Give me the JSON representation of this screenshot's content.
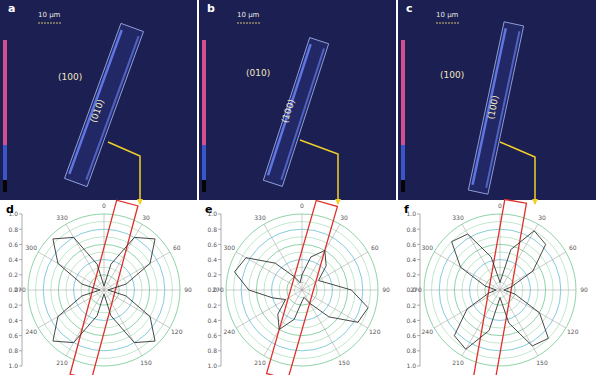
{
  "panels": [
    {
      "letter": "a",
      "scale_bar": "10 μm",
      "labels": [
        "(100)",
        "(010)"
      ]
    },
    {
      "letter": "b",
      "scale_bar": "10 μm",
      "labels": [
        "(010)",
        "(100)"
      ]
    },
    {
      "letter": "c",
      "scale_bar": "10 μm",
      "labels": [
        "(100)",
        "(100)"
      ]
    }
  ],
  "chart_data": [
    {
      "type": "polar",
      "title": "d",
      "x": [
        0,
        15,
        30,
        45,
        60,
        75,
        90,
        105,
        120,
        135,
        150,
        165,
        180,
        195,
        210,
        225,
        240,
        255,
        270,
        285,
        300,
        315,
        330,
        345
      ],
      "values": [
        0.05,
        0.35,
        0.8,
        0.95,
        0.7,
        0.3,
        0.05,
        0.3,
        0.7,
        0.95,
        0.8,
        0.35,
        0.05,
        0.35,
        0.8,
        0.95,
        0.7,
        0.3,
        0.05,
        0.3,
        0.7,
        0.95,
        0.8,
        0.35
      ],
      "xticks": [
        0,
        30,
        60,
        90,
        120,
        150,
        210,
        240,
        270,
        300,
        330
      ],
      "ylim": [
        0,
        1
      ],
      "yticks": [
        {
          "value": 0,
          "label": "0.0"
        },
        {
          "value": 0.2,
          "label": "0.2"
        },
        {
          "value": 0.4,
          "label": "0.4"
        },
        {
          "value": 0.6,
          "label": "0.6"
        },
        {
          "value": 0.8,
          "label": "0.8"
        },
        {
          "value": 1,
          "label": "1.0"
        }
      ],
      "color": "#333333",
      "grid": true
    },
    {
      "type": "polar",
      "title": "e",
      "x": [
        0,
        15,
        30,
        45,
        60,
        75,
        90,
        105,
        120,
        135,
        150,
        165,
        180,
        195,
        210,
        225,
        240,
        255,
        270,
        285,
        300,
        315,
        330,
        345
      ],
      "values": [
        0.2,
        0.45,
        0.6,
        0.45,
        0.25,
        0.35,
        0.65,
        0.9,
        0.85,
        0.5,
        0.2,
        0.1,
        0.15,
        0.4,
        0.6,
        0.45,
        0.25,
        0.4,
        0.7,
        0.92,
        0.85,
        0.5,
        0.2,
        0.1
      ],
      "xticks": [
        0,
        30,
        60,
        90,
        120,
        150,
        210,
        240,
        270,
        300,
        330
      ],
      "ylim": [
        0,
        1
      ],
      "yticks": [
        {
          "value": 0,
          "label": "0.0"
        },
        {
          "value": 0.2,
          "label": "0.2"
        },
        {
          "value": 0.4,
          "label": "0.4"
        },
        {
          "value": 0.6,
          "label": "0.6"
        },
        {
          "value": 0.8,
          "label": "0.8"
        },
        {
          "value": 1,
          "label": "1.0"
        }
      ],
      "color": "#333333",
      "grid": true
    },
    {
      "type": "polar",
      "title": "f",
      "x": [
        0,
        15,
        30,
        45,
        60,
        75,
        90,
        105,
        120,
        135,
        150,
        165,
        180,
        195,
        210,
        225,
        240,
        255,
        270,
        285,
        300,
        315,
        330,
        345
      ],
      "values": [
        0.1,
        0.55,
        0.9,
        0.85,
        0.5,
        0.15,
        0.05,
        0.2,
        0.6,
        0.9,
        0.85,
        0.45,
        0.1,
        0.55,
        0.9,
        0.85,
        0.5,
        0.15,
        0.05,
        0.2,
        0.6,
        0.9,
        0.85,
        0.45
      ],
      "xticks": [
        0,
        30,
        60,
        90,
        120,
        150,
        210,
        240,
        270,
        300,
        330
      ],
      "ylim": [
        0,
        1
      ],
      "yticks": [
        {
          "value": 0,
          "label": "0.0"
        },
        {
          "value": 0.2,
          "label": "0.2"
        },
        {
          "value": 0.4,
          "label": "0.4"
        },
        {
          "value": 0.6,
          "label": "0.6"
        },
        {
          "value": 0.8,
          "label": "0.8"
        },
        {
          "value": 1,
          "label": "1.0"
        }
      ],
      "color": "#333333",
      "grid": true
    }
  ]
}
